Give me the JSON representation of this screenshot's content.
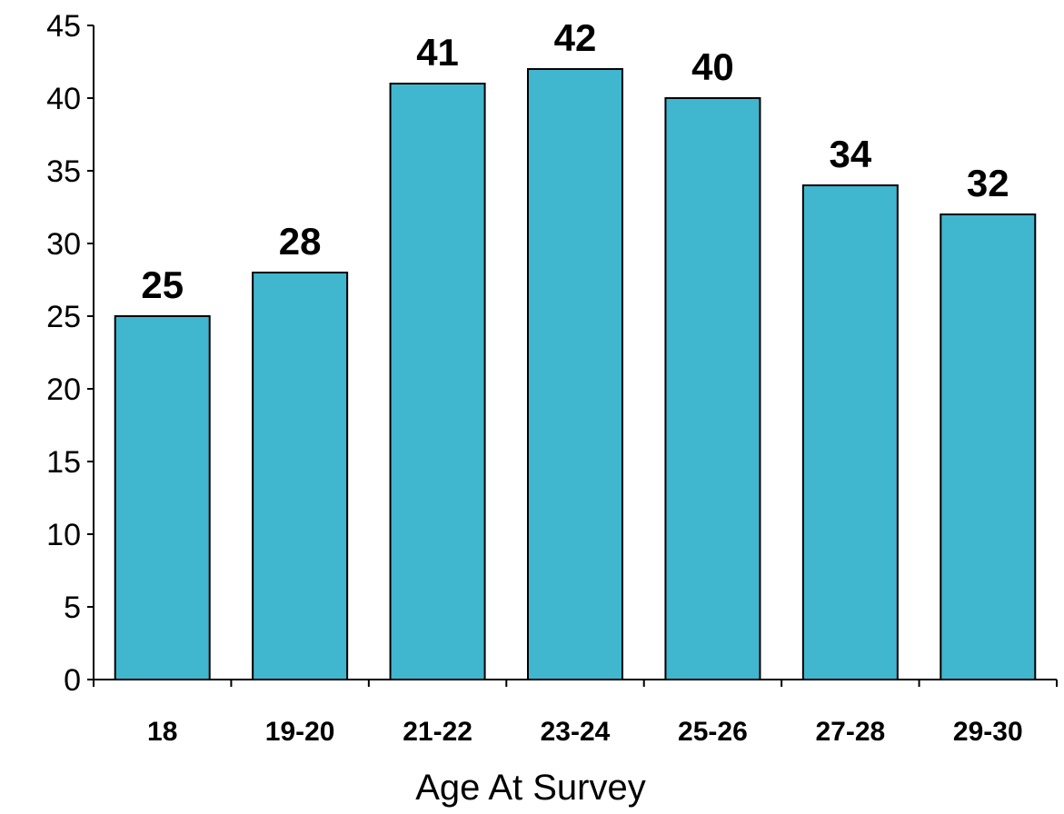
{
  "chart_data": {
    "type": "bar",
    "categories": [
      "18",
      "19-20",
      "21-22",
      "23-24",
      "25-26",
      "27-28",
      "29-30"
    ],
    "values": [
      25,
      28,
      41,
      42,
      40,
      34,
      32
    ],
    "data_labels": [
      "25",
      "28",
      "41",
      "42",
      "40",
      "34",
      "32"
    ],
    "xlabel": "Age At Survey",
    "ylabel": "",
    "ylim": [
      0,
      45
    ],
    "yticks": [
      0,
      5,
      10,
      15,
      20,
      25,
      30,
      35,
      40,
      45
    ],
    "ytick_labels": [
      "0",
      "5",
      "10",
      "15",
      "20",
      "25",
      "30",
      "35",
      "40",
      "45"
    ],
    "grid": false,
    "bar_color": "#40b6cf",
    "bar_edge_color": "#000000"
  }
}
